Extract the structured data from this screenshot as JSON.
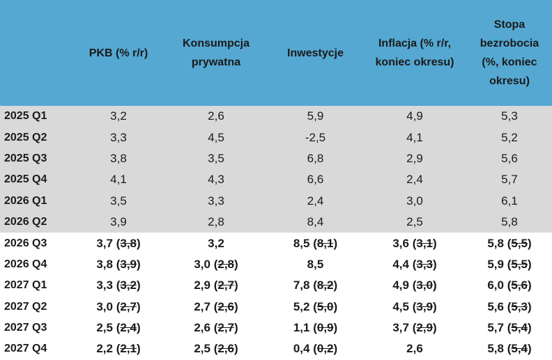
{
  "table": {
    "header": [
      "PKB (% r/r)",
      "Konsumpcja prywatna",
      "Inwestycje",
      "Inflacja (% r/r, koniec okresu)",
      "Stopa bezrobocia (%, koniec okresu)"
    ],
    "rows": [
      {
        "label": "2025 Q1",
        "cells": [
          {
            "value": "3,2"
          },
          {
            "value": "2,6"
          },
          {
            "value": "5,9"
          },
          {
            "value": "4,9"
          },
          {
            "value": "5,3"
          }
        ]
      },
      {
        "label": "2025 Q2",
        "cells": [
          {
            "value": "3,3"
          },
          {
            "value": "4,5"
          },
          {
            "value": "-2,5"
          },
          {
            "value": "4,1"
          },
          {
            "value": "5,2"
          }
        ]
      },
      {
        "label": "2025 Q3",
        "cells": [
          {
            "value": "3,8"
          },
          {
            "value": "3,5"
          },
          {
            "value": "6,8"
          },
          {
            "value": "2,9"
          },
          {
            "value": "5,6"
          }
        ]
      },
      {
        "label": "2025 Q4",
        "cells": [
          {
            "value": "4,1"
          },
          {
            "value": "4,3"
          },
          {
            "value": "6,6"
          },
          {
            "value": "2,4"
          },
          {
            "value": "5,7"
          }
        ]
      },
      {
        "label": "2026 Q1",
        "cells": [
          {
            "value": "3,5"
          },
          {
            "value": "3,3"
          },
          {
            "value": "2,4"
          },
          {
            "value": "3,0"
          },
          {
            "value": "6,1"
          }
        ]
      },
      {
        "label": "2026 Q2",
        "cells": [
          {
            "value": "3,9"
          },
          {
            "value": "2,8"
          },
          {
            "value": "8,4"
          },
          {
            "value": "2,5"
          },
          {
            "value": "5,8"
          }
        ]
      },
      {
        "label": "2026 Q3",
        "forecast": true,
        "cells": [
          {
            "value": "3,7",
            "open": "(",
            "previous": "3,8",
            "close": ")"
          },
          {
            "value": "3,2"
          },
          {
            "value": "8,5",
            "open": "(",
            "previous": "8,1",
            "close": ")"
          },
          {
            "value": "3,6",
            "open": "(",
            "previous": "3,1",
            "close": ")"
          },
          {
            "value": "5,8",
            "open": "(",
            "previous": "5,5",
            "close": ")"
          }
        ]
      },
      {
        "label": "2026 Q4",
        "forecast": true,
        "cells": [
          {
            "value": "3,8",
            "open": "(",
            "previous": "3,9",
            "close": ")"
          },
          {
            "value": "3,0",
            "open": "(",
            "previous": "2,8",
            "close": ")"
          },
          {
            "value": "8,5"
          },
          {
            "value": "4,4",
            "open": "(",
            "previous": "3,3",
            "close": ")"
          },
          {
            "value": "5,9",
            "open": "(",
            "previous": "5,5",
            "close": ")"
          }
        ]
      },
      {
        "label": "2027 Q1",
        "forecast": true,
        "cells": [
          {
            "value": "3,3",
            "open": "(",
            "previous": "3,2",
            "close": ")"
          },
          {
            "value": "2,9",
            "open": "(",
            "previous": "2,7",
            "close": ")"
          },
          {
            "value": "7,8",
            "open": "(",
            "previous": "8,2",
            "close": ")"
          },
          {
            "value": "4,9",
            "open": "(",
            "previous": "3,0",
            "close": ")"
          },
          {
            "value": "6,0",
            "open": "(",
            "previous": "5,6",
            "close": ")"
          }
        ]
      },
      {
        "label": "2027 Q2",
        "forecast": true,
        "cells": [
          {
            "value": "3,0",
            "open": "(",
            "previous": "2,7",
            "close": ")"
          },
          {
            "value": "2,7",
            "open": "(",
            "previous": "2,6",
            "close": ")"
          },
          {
            "value": "5,2",
            "open": "(",
            "previous": "5,0",
            "close": ")"
          },
          {
            "value": "4,5",
            "open": "(",
            "previous": "3,9",
            "close": ")"
          },
          {
            "value": "5,6",
            "open": "(",
            "previous": "5,3",
            "close": ")"
          }
        ]
      },
      {
        "label": "2027 Q3",
        "forecast": true,
        "cells": [
          {
            "value": "2,5",
            "open": "(",
            "previous": "2,4",
            "close": ")"
          },
          {
            "value": "2,6",
            "open": "(",
            "previous": "2,7",
            "close": ")"
          },
          {
            "value": "1,1",
            "open": "(",
            "previous": "0,9",
            "close": ")"
          },
          {
            "value": "3,7",
            "open": "(",
            "previous": "2,9",
            "close": ")"
          },
          {
            "value": "5,7",
            "open": "(",
            "previous": "5,4",
            "close": ")"
          }
        ]
      },
      {
        "label": "2027 Q4",
        "forecast": true,
        "cells": [
          {
            "value": "2,2",
            "open": "(",
            "previous": "2,1",
            "close": ")"
          },
          {
            "value": "2,5",
            "open": "(",
            "previous": "2,6",
            "close": ")"
          },
          {
            "value": "0,4",
            "open": "(",
            "previous": "0,2",
            "close": ")"
          },
          {
            "value": "2,6"
          },
          {
            "value": "5,8",
            "open": "(",
            "previous": "5,4",
            "close": ")"
          }
        ]
      }
    ]
  }
}
